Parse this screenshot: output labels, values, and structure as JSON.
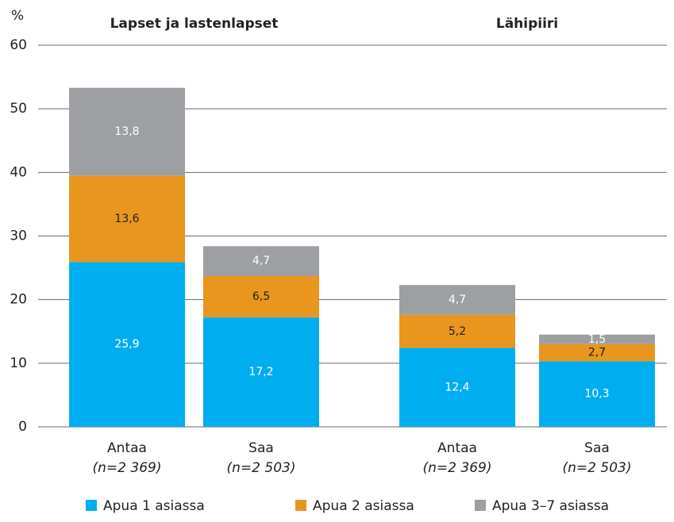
{
  "chart_data": {
    "type": "stacked_bar",
    "y_label": "%",
    "groups": [
      "Lapset ja lastenlapset",
      "Lähipiiri"
    ],
    "categories": [
      "Antaa",
      "Saa",
      "Antaa",
      "Saa"
    ],
    "sublabels": [
      "(n=2 369)",
      "(n=2 503)",
      "(n=2 369)",
      "(n=2 503)"
    ],
    "series": [
      {
        "name": "Apua 1 asiassa",
        "color": "#00aeef",
        "values": [
          25.9,
          17.2,
          12.4,
          10.3
        ],
        "value_labels": [
          "25,9",
          "17,2",
          "12,4",
          "10,3"
        ]
      },
      {
        "name": "Apua 2 asiassa",
        "color": "#e8961e",
        "values": [
          13.6,
          6.5,
          5.2,
          2.7
        ],
        "value_labels": [
          "13,6",
          "6,5",
          "5,2",
          "2,7"
        ]
      },
      {
        "name": "Apua 3–7 asiassa",
        "color": "#9d9fa2",
        "values": [
          13.8,
          4.7,
          4.7,
          1.5
        ],
        "value_labels": [
          "13,8",
          "4,7",
          "4,7",
          "1,5"
        ]
      }
    ],
    "ylim": [
      0,
      60
    ],
    "yticks": [
      0,
      10,
      20,
      30,
      40,
      50,
      60
    ],
    "grid": true,
    "legend": "bottom"
  }
}
